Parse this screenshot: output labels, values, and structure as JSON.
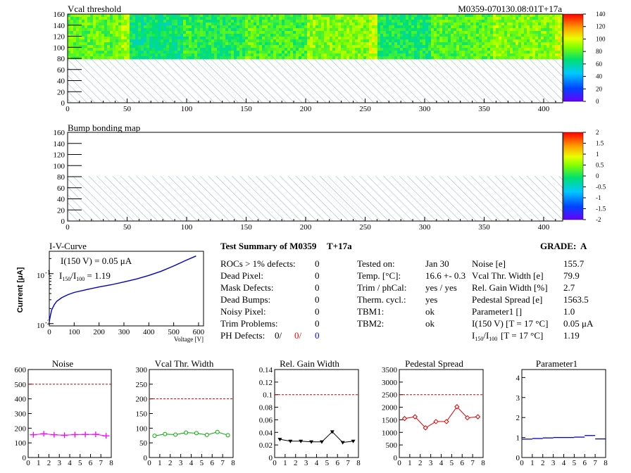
{
  "colors": {
    "hatch": "#7fb7b7",
    "red_limit": "#cc0000",
    "noise": "#ff00ff",
    "vcal": "#00aa00",
    "gain": "#000000",
    "pedestal": "#dd0000",
    "param1": "#0000cc",
    "iv": "#0000cc",
    "ph_red": "#ff0000",
    "ph_blue": "#0000ff"
  },
  "vcal_map": {
    "title": "Vcal threshold",
    "module_label": "M0359-070130.08:01T+17a",
    "x_ticks": [
      "0",
      "50",
      "100",
      "150",
      "200",
      "250",
      "300",
      "350",
      "400"
    ],
    "y_ticks": [
      "0",
      "20",
      "40",
      "60",
      "80",
      "100",
      "120",
      "140",
      "160"
    ],
    "palette_ticks": [
      "140",
      "120",
      "100",
      "80",
      "60",
      "40",
      "20",
      "0"
    ],
    "zmax": 140,
    "roc_bands": [
      82,
      66,
      72,
      78,
      86,
      70,
      80,
      86
    ]
  },
  "bump_map": {
    "title": "Bump bonding map",
    "x_ticks": [
      "0",
      "50",
      "100",
      "150",
      "200",
      "250",
      "300",
      "350",
      "400"
    ],
    "y_ticks": [
      "0",
      "20",
      "40",
      "60",
      "80",
      "100",
      "120",
      "140",
      "160"
    ],
    "palette_ticks": [
      "2",
      "1.5",
      "1",
      "0.5",
      "0",
      "-0.5",
      "-1",
      "-1.5",
      "-2"
    ]
  },
  "iv_curve": {
    "title": "I-V-Curve",
    "ylabel": "Current [μA]",
    "xlabel": "Voltage [V]",
    "x_ticks": [
      "0",
      "100",
      "200",
      "300",
      "400",
      "500",
      "600"
    ],
    "y_tick_labels": [
      "10",
      "10"
    ],
    "y_tick_exps": [
      "-1",
      "-2"
    ],
    "annotation_i": "I(150 V) = 0.05 μA",
    "annotation_ratio_value": "1.19",
    "x": [
      0,
      5,
      10,
      20,
      30,
      50,
      75,
      100,
      150,
      200,
      250,
      300,
      350,
      400,
      450,
      500,
      550,
      590
    ],
    "y": [
      0.011,
      0.015,
      0.019,
      0.024,
      0.028,
      0.033,
      0.038,
      0.042,
      0.048,
      0.054,
      0.06,
      0.068,
      0.078,
      0.092,
      0.112,
      0.142,
      0.185,
      0.225
    ],
    "xlim": [
      0,
      620
    ],
    "ylim": [
      0.009,
      0.28
    ]
  },
  "summary": {
    "title": "Test Summary of M0359",
    "tag": "T+17a",
    "grade_label": "GRADE:",
    "grade": "A",
    "left_labels": [
      "ROCs > 1% defects:",
      "Dead Pixel:",
      "Mask Defects:",
      "Dead Bumps:",
      "Noisy Pixel:",
      "Trim Problems:"
    ],
    "left_values": [
      "0",
      "0",
      "0",
      "0",
      "0",
      "0"
    ],
    "ph_label": "PH Defects:",
    "ph_values": [
      "0/",
      "0/",
      "0"
    ],
    "mid_labels": [
      "Tested on:",
      "Temp. [°C]:",
      "Trim / phCal:",
      "Therm. cycl.:",
      "TBM1:",
      "TBM2:"
    ],
    "mid_values": [
      "Jan 30",
      "16.6 +- 0.3",
      "yes / yes",
      "yes",
      "ok",
      "ok"
    ],
    "right_labels": [
      "Noise [e]",
      "Vcal Thr. Width [e]",
      "Rel. Gain Width [%]",
      "Pedestal Spread [e]",
      "Parameter1 []",
      "I(150 V) [T = 17 °C]",
      "[T = 17 °C]"
    ],
    "right_values": [
      "155.7",
      "79.9",
      "2.7",
      "1563.5",
      "1.0",
      "0.05 μA",
      "1.19"
    ]
  },
  "chart_data": [
    {
      "type": "line",
      "title": "Noise",
      "x": [
        0.5,
        1.5,
        2.5,
        3.5,
        4.5,
        5.5,
        6.5,
        7.5
      ],
      "values": [
        155,
        162,
        155,
        152,
        156,
        157,
        158,
        148
      ],
      "ylim": [
        0,
        600
      ],
      "limit": 500,
      "y_ticks": [
        "0",
        "100",
        "200",
        "300",
        "400",
        "500",
        "600"
      ],
      "x_ticks": [
        "0",
        "1",
        "2",
        "3",
        "4",
        "5",
        "6",
        "7",
        "8"
      ],
      "style": "errbar"
    },
    {
      "type": "line",
      "title": "Vcal Thr. Width",
      "x": [
        0.5,
        1.5,
        2.5,
        3.5,
        4.5,
        5.5,
        6.5,
        7.5
      ],
      "values": [
        74,
        80,
        78,
        85,
        83,
        77,
        87,
        76
      ],
      "ylim": [
        0,
        300
      ],
      "limit": 200,
      "y_ticks": [
        "0",
        "50",
        "100",
        "150",
        "200",
        "250",
        "300"
      ],
      "x_ticks": [
        "0",
        "1",
        "2",
        "3",
        "4",
        "5",
        "6",
        "7",
        "8"
      ],
      "style": "circle"
    },
    {
      "type": "line",
      "title": "Rel. Gain Width",
      "x": [
        0.5,
        1.5,
        2.5,
        3.5,
        4.5,
        5.5,
        6.5,
        7.5
      ],
      "values": [
        0.029,
        0.026,
        0.026,
        0.025,
        0.025,
        0.041,
        0.024,
        0.026
      ],
      "ylim": [
        0,
        0.14
      ],
      "limit": 0.1,
      "y_ticks": [
        "0",
        "0.02",
        "0.04",
        "0.06",
        "0.08",
        "0.1",
        "0.12",
        "0.14"
      ],
      "x_ticks": [
        "0",
        "1",
        "2",
        "3",
        "4",
        "5",
        "6",
        "7",
        "8"
      ],
      "style": "triangle"
    },
    {
      "type": "line",
      "title": "Pedestal Spread",
      "x": [
        0.5,
        1.5,
        2.5,
        3.5,
        4.5,
        5.5,
        6.5,
        7.5
      ],
      "values": [
        1550,
        1620,
        1180,
        1430,
        1430,
        2020,
        1580,
        1620
      ],
      "ylim": [
        0,
        3500
      ],
      "limit": 2500,
      "y_ticks": [
        "0",
        "500",
        "1000",
        "1500",
        "2000",
        "2500",
        "3000",
        "3500"
      ],
      "x_ticks": [
        "0",
        "1",
        "2",
        "3",
        "4",
        "5",
        "6",
        "7",
        "8"
      ],
      "style": "diamond"
    },
    {
      "type": "line",
      "title": "Parameter1",
      "x": [
        0.5,
        1.5,
        2.5,
        3.5,
        4.5,
        5.5,
        6.5,
        7.5
      ],
      "values": [
        0.92,
        0.95,
        0.98,
        1.0,
        1.0,
        1.02,
        1.1,
        0.93
      ],
      "ylim": [
        0,
        4.4
      ],
      "limit": null,
      "y_ticks": [
        "0",
        "1",
        "2",
        "3",
        "4"
      ],
      "x_ticks": [
        "0",
        "1",
        "2",
        "3",
        "4",
        "5",
        "6",
        "7",
        "8"
      ],
      "style": "hbar"
    }
  ]
}
